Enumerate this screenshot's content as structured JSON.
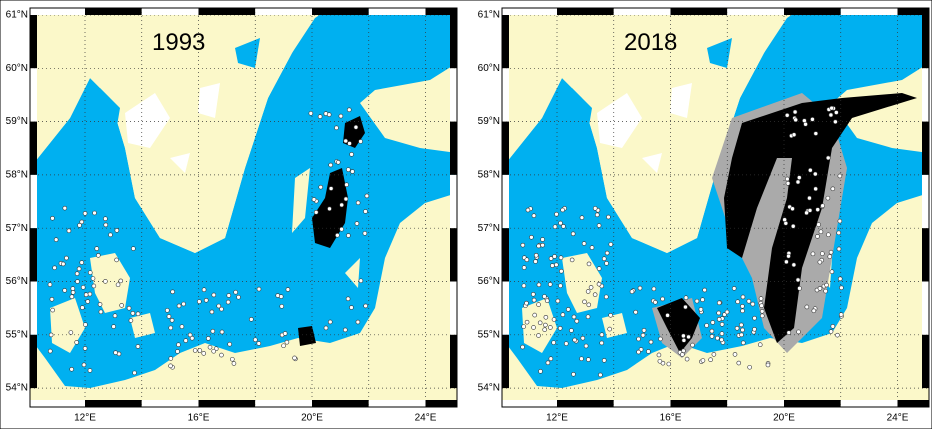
{
  "panels": [
    {
      "title": "1993",
      "lat_labels": [
        "61°N",
        "60°N",
        "59°N",
        "58°N",
        "57°N",
        "56°N",
        "55°N",
        "54°N"
      ],
      "lon_labels": [
        "12°E",
        "16°E",
        "20°E",
        "24°E"
      ]
    },
    {
      "title": "2018",
      "lat_labels": [
        "61°N",
        "60°N",
        "59°N",
        "58°N",
        "57°N",
        "56°N",
        "55°N",
        "54°N"
      ],
      "lon_labels": [
        "12°E",
        "16°E",
        "20°E",
        "24°E"
      ]
    }
  ]
}
